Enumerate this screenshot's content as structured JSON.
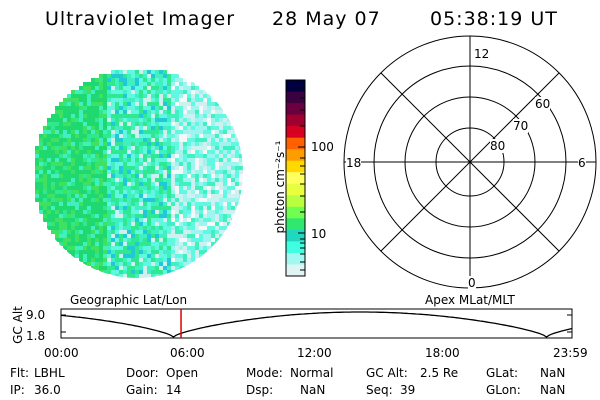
{
  "header": {
    "instrument": "Ultraviolet Imager",
    "date": "28 May 07",
    "time": "05:38:19 UT"
  },
  "colorbar": {
    "unit_label": "photon cm⁻²s⁻¹",
    "ticks": [
      "100",
      "10"
    ],
    "colors": [
      "#000040",
      "#3a0040",
      "#6a0040",
      "#a00030",
      "#d80020",
      "#ff6000",
      "#ff9c00",
      "#ffd800",
      "#ffff60",
      "#e8ff40",
      "#b8ff40",
      "#70ff50",
      "#30e870",
      "#20d8c0",
      "#40ffe0",
      "#a0f8f0",
      "#e0f4f4"
    ]
  },
  "polar_plot": {
    "mlt_labels": {
      "top": "12",
      "left": "18",
      "right": "6",
      "bottom": "0"
    },
    "lat_labels": [
      "60",
      "70",
      "80"
    ]
  },
  "timeline": {
    "y_axis_label": "GC Alt",
    "y_ticks": [
      "9.0",
      "1.8"
    ],
    "left_title": "Geographic Lat/Lon",
    "right_title": "Apex MLat/MLT",
    "x_ticks": [
      "00:00",
      "06:00",
      "12:00",
      "18:00",
      "23:59"
    ],
    "marker_time": "05:38",
    "marker_fraction": 0.2349,
    "marker_color": "#e00000"
  },
  "metadata": [
    [
      {
        "label": "Flt:",
        "value": "LBHL"
      },
      {
        "label": "Door:",
        "value": "Open"
      },
      {
        "label": "Mode:",
        "value": "Normal"
      },
      {
        "label": "GC Alt:",
        "value": "2.5 Re"
      },
      {
        "label": "GLat:",
        "value": "NaN"
      }
    ],
    [
      {
        "label": "IP:",
        "value": "36.0"
      },
      {
        "label": "Gain:",
        "value": "14"
      },
      {
        "label": "Dsp:",
        "value": "NaN"
      },
      {
        "label": "Seq:",
        "value": "39"
      },
      {
        "label": "GLon:",
        "value": "NaN"
      }
    ]
  ]
}
